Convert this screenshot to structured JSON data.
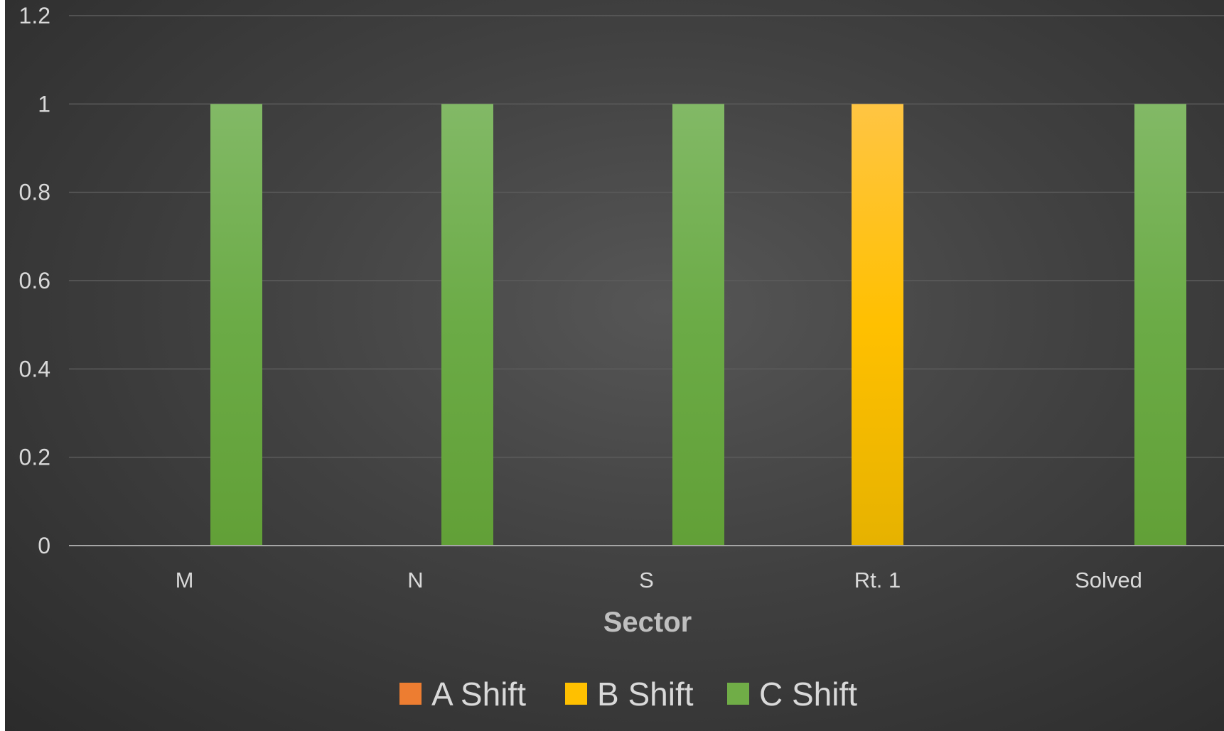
{
  "chart_data": {
    "type": "bar",
    "title": "",
    "xlabel": "Sector",
    "ylabel": "",
    "categories": [
      "M",
      "N",
      "S",
      "Rt. 1",
      "Solved"
    ],
    "series": [
      {
        "name": "A Shift",
        "color": "#ed7d31",
        "values": [
          0,
          0,
          0,
          0,
          0
        ]
      },
      {
        "name": "B Shift",
        "color": "#ffc000",
        "values": [
          0,
          0,
          0,
          1,
          0
        ]
      },
      {
        "name": "C Shift",
        "color": "#70ad47",
        "values": [
          1,
          1,
          1,
          0,
          1
        ]
      }
    ],
    "ylim": [
      0,
      1.2
    ],
    "yticks": [
      "0",
      "0.2",
      "0.4",
      "0.6",
      "0.8",
      "1",
      "1.2"
    ],
    "grid": true,
    "legend_position": "bottom"
  }
}
